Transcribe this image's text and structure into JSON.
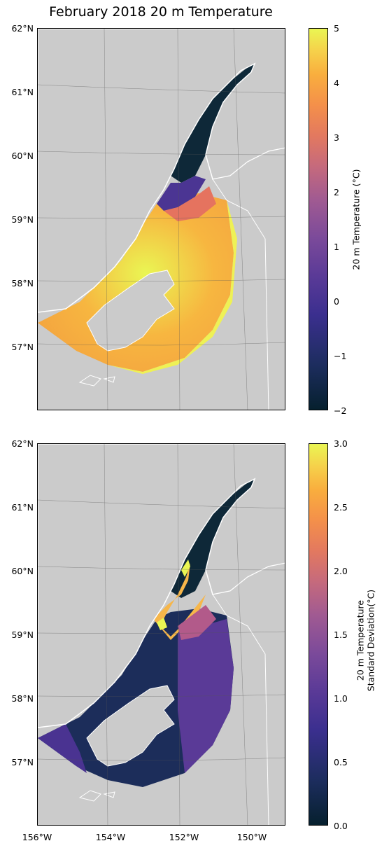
{
  "title": "February 2018 20 m Temperature",
  "latitude_labels": [
    "62°N",
    "61°N",
    "60°N",
    "59°N",
    "58°N",
    "57°N"
  ],
  "longitude_labels": [
    "156°W",
    "154°W",
    "152°W",
    "150°W"
  ],
  "colors": {
    "land": "#cbcbcb",
    "colormap": "thermal (dark navy → purple → orange → yellow)"
  },
  "panels": [
    {
      "name": "mean-temperature",
      "colorbar_label": "20 m Temperature (°C)",
      "colorbar_ticks": [
        "5",
        "4",
        "3",
        "2",
        "1",
        "0",
        "−1",
        "−2"
      ],
      "range": [
        -2,
        5
      ]
    },
    {
      "name": "temperature-std",
      "colorbar_label_line1": "20 m Temperature",
      "colorbar_label_line2": "Standard Deviation(°C)",
      "colorbar_ticks": [
        "3.0",
        "2.5",
        "2.0",
        "1.5",
        "1.0",
        "0.5",
        "0.0"
      ],
      "range": [
        0,
        3
      ]
    }
  ]
}
